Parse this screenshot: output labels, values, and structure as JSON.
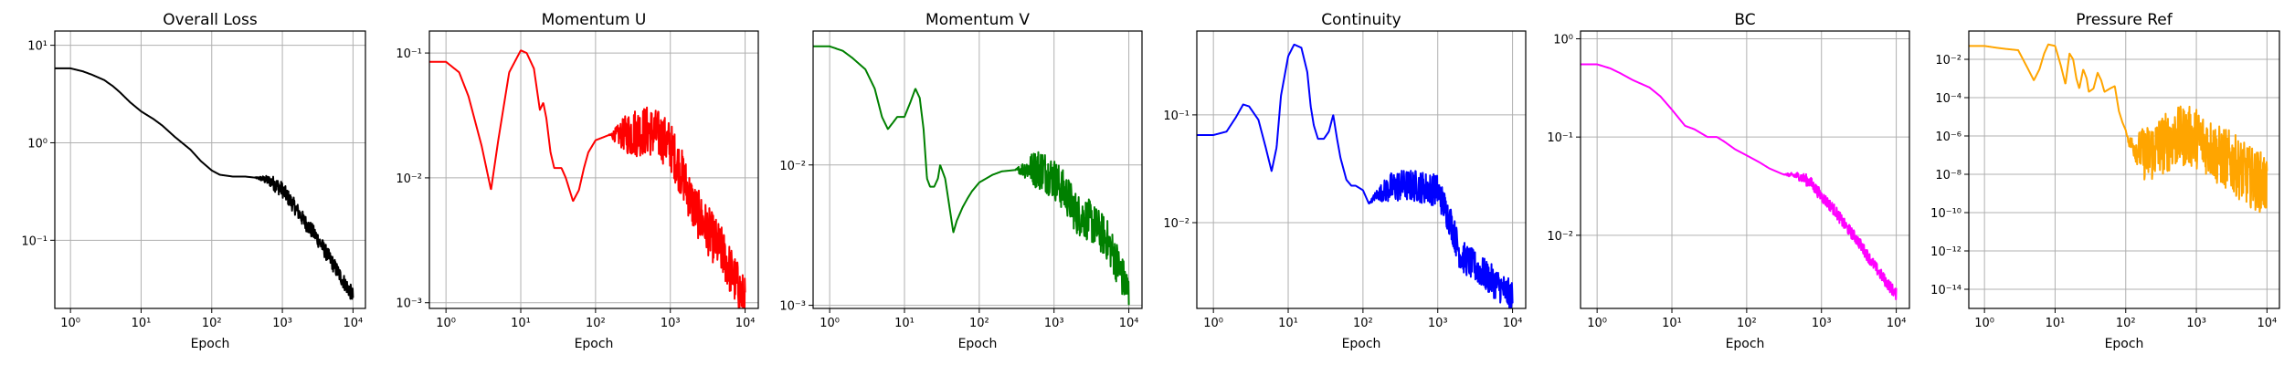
{
  "chart_data": [
    {
      "type": "line",
      "title": "Overall Loss",
      "xlabel": "Epoch",
      "ylabel": "",
      "xscale": "log",
      "yscale": "log",
      "xlim": [
        0.6,
        15000
      ],
      "ylim": [
        0.02,
        14
      ],
      "grid": true,
      "color": "#000000",
      "x_ticks": [
        {
          "value": 1,
          "label": "10⁰"
        },
        {
          "value": 10,
          "label": "10¹"
        },
        {
          "value": 100,
          "label": "10²"
        },
        {
          "value": 1000,
          "label": "10³"
        },
        {
          "value": 10000,
          "label": "10⁴"
        }
      ],
      "y_ticks": [
        {
          "value": 0.1,
          "label": "10⁻¹"
        },
        {
          "value": 1,
          "label": "10⁰"
        },
        {
          "value": 10,
          "label": "10¹"
        }
      ],
      "series": [
        {
          "x": [
            0.6,
            1,
            1.5,
            2,
            3,
            4,
            5,
            7,
            10,
            15,
            20,
            30,
            50,
            70,
            100,
            130,
            200,
            300,
            400,
            500,
            700,
            1000,
            1500,
            2000,
            3000,
            5000,
            7000,
            10000
          ],
          "y": [
            5.8,
            5.8,
            5.4,
            5.0,
            4.4,
            3.8,
            3.3,
            2.6,
            2.1,
            1.75,
            1.5,
            1.15,
            0.85,
            0.65,
            0.52,
            0.47,
            0.45,
            0.45,
            0.44,
            0.43,
            0.4,
            0.33,
            0.22,
            0.16,
            0.11,
            0.06,
            0.04,
            0.027
          ],
          "noise": 0.08,
          "noise_from": 400
        }
      ]
    },
    {
      "type": "line",
      "title": "Momentum U",
      "xlabel": "Epoch",
      "ylabel": "",
      "xscale": "log",
      "yscale": "log",
      "xlim": [
        0.6,
        15000
      ],
      "ylim": [
        0.0009,
        0.15
      ],
      "grid": true,
      "color": "#ff0000",
      "x_ticks": [
        {
          "value": 1,
          "label": "10⁰"
        },
        {
          "value": 10,
          "label": "10¹"
        },
        {
          "value": 100,
          "label": "10²"
        },
        {
          "value": 1000,
          "label": "10³"
        },
        {
          "value": 10000,
          "label": "10⁴"
        }
      ],
      "y_ticks": [
        {
          "value": 0.001,
          "label": "10⁻³"
        },
        {
          "value": 0.01,
          "label": "10⁻²"
        },
        {
          "value": 0.1,
          "label": "10⁻¹"
        }
      ],
      "series": [
        {
          "x": [
            0.6,
            1,
            1.5,
            2,
            3,
            4,
            5,
            7,
            10,
            12,
            15,
            18,
            20,
            22,
            25,
            28,
            30,
            35,
            40,
            50,
            60,
            70,
            80,
            100,
            150,
            200,
            300,
            500,
            700,
            1000,
            1500,
            2000,
            3000,
            5000,
            7000,
            10000
          ],
          "y": [
            0.085,
            0.085,
            0.07,
            0.045,
            0.018,
            0.008,
            0.02,
            0.07,
            0.105,
            0.1,
            0.075,
            0.035,
            0.04,
            0.03,
            0.016,
            0.012,
            0.012,
            0.012,
            0.01,
            0.0065,
            0.008,
            0.012,
            0.016,
            0.02,
            0.022,
            0.022,
            0.023,
            0.024,
            0.022,
            0.018,
            0.01,
            0.006,
            0.004,
            0.0025,
            0.0016,
            0.001
          ],
          "noise": 0.2,
          "noise_from": 150
        }
      ]
    },
    {
      "type": "line",
      "title": "Momentum V",
      "xlabel": "Epoch",
      "ylabel": "",
      "xscale": "log",
      "yscale": "log",
      "xlim": [
        0.6,
        15000
      ],
      "ylim": [
        0.00095,
        0.09
      ],
      "grid": true,
      "color": "#008000",
      "x_ticks": [
        {
          "value": 1,
          "label": "10⁰"
        },
        {
          "value": 10,
          "label": "10¹"
        },
        {
          "value": 100,
          "label": "10²"
        },
        {
          "value": 1000,
          "label": "10³"
        },
        {
          "value": 10000,
          "label": "10⁴"
        }
      ],
      "y_ticks": [
        {
          "value": 0.001,
          "label": "10⁻³"
        },
        {
          "value": 0.01,
          "label": "10⁻²"
        }
      ],
      "series": [
        {
          "x": [
            0.6,
            1,
            1.5,
            2,
            3,
            4,
            5,
            6,
            7,
            8,
            10,
            12,
            14,
            16,
            18,
            20,
            22,
            25,
            28,
            30,
            35,
            40,
            45,
            50,
            60,
            70,
            80,
            100,
            150,
            200,
            300,
            500,
            700,
            1000,
            1500,
            2000,
            3000,
            5000,
            7000,
            10000
          ],
          "y": [
            0.07,
            0.07,
            0.065,
            0.058,
            0.048,
            0.035,
            0.022,
            0.018,
            0.02,
            0.022,
            0.022,
            0.028,
            0.035,
            0.03,
            0.018,
            0.008,
            0.007,
            0.007,
            0.008,
            0.01,
            0.008,
            0.005,
            0.0033,
            0.004,
            0.005,
            0.0058,
            0.0065,
            0.0075,
            0.0085,
            0.009,
            0.0092,
            0.0095,
            0.0093,
            0.008,
            0.006,
            0.0045,
            0.004,
            0.003,
            0.002,
            0.0012
          ],
          "noise": 0.15,
          "noise_from": 300
        }
      ]
    },
    {
      "type": "line",
      "title": "Continuity",
      "xlabel": "Epoch",
      "ylabel": "",
      "xscale": "log",
      "yscale": "log",
      "xlim": [
        0.6,
        15000
      ],
      "ylim": [
        0.0016,
        0.6
      ],
      "grid": true,
      "color": "#0000ff",
      "x_ticks": [
        {
          "value": 1,
          "label": "10⁰"
        },
        {
          "value": 10,
          "label": "10¹"
        },
        {
          "value": 100,
          "label": "10²"
        },
        {
          "value": 1000,
          "label": "10³"
        },
        {
          "value": 10000,
          "label": "10⁴"
        }
      ],
      "y_ticks": [
        {
          "value": 0.01,
          "label": "10⁻²"
        },
        {
          "value": 0.1,
          "label": "10⁻¹"
        }
      ],
      "series": [
        {
          "x": [
            0.6,
            1,
            1.5,
            2,
            2.5,
            3,
            4,
            5,
            6,
            7,
            8,
            10,
            12,
            15,
            18,
            20,
            22,
            25,
            30,
            35,
            40,
            45,
            50,
            60,
            70,
            80,
            100,
            120,
            150,
            200,
            300,
            500,
            700,
            1000,
            1500,
            2000,
            3000,
            5000,
            7000,
            10000
          ],
          "y": [
            0.065,
            0.065,
            0.07,
            0.095,
            0.125,
            0.12,
            0.09,
            0.05,
            0.03,
            0.05,
            0.15,
            0.35,
            0.45,
            0.42,
            0.25,
            0.12,
            0.08,
            0.06,
            0.06,
            0.07,
            0.1,
            0.06,
            0.04,
            0.025,
            0.022,
            0.022,
            0.02,
            0.015,
            0.018,
            0.02,
            0.022,
            0.022,
            0.021,
            0.02,
            0.01,
            0.005,
            0.004,
            0.003,
            0.0025,
            0.002
          ],
          "noise": 0.15,
          "noise_from": 120
        }
      ]
    },
    {
      "type": "line",
      "title": "BC",
      "xlabel": "Epoch",
      "ylabel": "",
      "xscale": "log",
      "yscale": "log",
      "xlim": [
        0.6,
        15000
      ],
      "ylim": [
        0.0018,
        1.2
      ],
      "grid": true,
      "color": "#ff00ff",
      "x_ticks": [
        {
          "value": 1,
          "label": "10⁰"
        },
        {
          "value": 10,
          "label": "10¹"
        },
        {
          "value": 100,
          "label": "10²"
        },
        {
          "value": 1000,
          "label": "10³"
        },
        {
          "value": 10000,
          "label": "10⁴"
        }
      ],
      "y_ticks": [
        {
          "value": 0.01,
          "label": "10⁻²"
        },
        {
          "value": 0.1,
          "label": "10⁻¹"
        },
        {
          "value": 1,
          "label": "10⁰"
        }
      ],
      "series": [
        {
          "x": [
            0.6,
            1,
            1.5,
            2,
            3,
            5,
            7,
            10,
            15,
            20,
            30,
            40,
            50,
            70,
            100,
            150,
            200,
            300,
            500,
            700,
            1000,
            1500,
            2000,
            3000,
            5000,
            7000,
            10000
          ],
          "y": [
            0.55,
            0.55,
            0.5,
            0.45,
            0.38,
            0.32,
            0.26,
            0.19,
            0.13,
            0.12,
            0.1,
            0.1,
            0.09,
            0.075,
            0.065,
            0.055,
            0.048,
            0.042,
            0.04,
            0.035,
            0.025,
            0.018,
            0.013,
            0.009,
            0.005,
            0.0035,
            0.0025
          ],
          "noise": 0.06,
          "noise_from": 300
        }
      ]
    },
    {
      "type": "line",
      "title": "Pressure Ref",
      "xlabel": "Epoch",
      "ylabel": "",
      "xscale": "log",
      "yscale": "log",
      "xlim": [
        0.6,
        15000
      ],
      "ylim": [
        1e-15,
        0.3
      ],
      "grid": true,
      "color": "#ffa500",
      "x_ticks": [
        {
          "value": 1,
          "label": "10⁰"
        },
        {
          "value": 10,
          "label": "10¹"
        },
        {
          "value": 100,
          "label": "10²"
        },
        {
          "value": 1000,
          "label": "10³"
        },
        {
          "value": 10000,
          "label": "10⁴"
        }
      ],
      "y_ticks": [
        {
          "value": 1e-14,
          "label": "10⁻¹⁴"
        },
        {
          "value": 1e-12,
          "label": "10⁻¹²"
        },
        {
          "value": 1e-10,
          "label": "10⁻¹⁰"
        },
        {
          "value": 1e-08,
          "label": "10⁻⁸"
        },
        {
          "value": 1e-06,
          "label": "10⁻⁶"
        },
        {
          "value": 0.0001,
          "label": "10⁻⁴"
        },
        {
          "value": 0.01,
          "label": "10⁻²"
        }
      ],
      "series": [
        {
          "x": [
            0.6,
            1,
            1.5,
            2,
            3,
            4,
            5,
            6,
            7,
            8,
            10,
            12,
            14,
            16,
            18,
            20,
            22,
            25,
            28,
            30,
            35,
            40,
            45,
            50,
            60,
            70,
            80,
            90,
            100,
            110,
            130,
            150,
            200,
            300,
            500,
            700,
            1000,
            1500,
            2000,
            3000,
            5000,
            7000,
            10000
          ],
          "y": [
            0.05,
            0.05,
            0.04,
            0.035,
            0.03,
            0.004,
            0.0008,
            0.003,
            0.02,
            0.06,
            0.05,
            0.005,
            0.0005,
            0.02,
            0.01,
            0.001,
            0.0003,
            0.003,
            0.001,
            0.0002,
            0.0003,
            0.002,
            0.0008,
            0.0002,
            0.0003,
            0.0004,
            2e-05,
            5e-06,
            2e-06,
            5e-07,
            3e-07,
            2e-07,
            1e-07,
            3e-07,
            8e-07,
            1e-06,
            8e-07,
            3e-07,
            1e-07,
            5e-08,
            1e-08,
            5e-09,
            3e-09
          ],
          "noise": 1.6,
          "noise_from": 100
        }
      ]
    }
  ]
}
